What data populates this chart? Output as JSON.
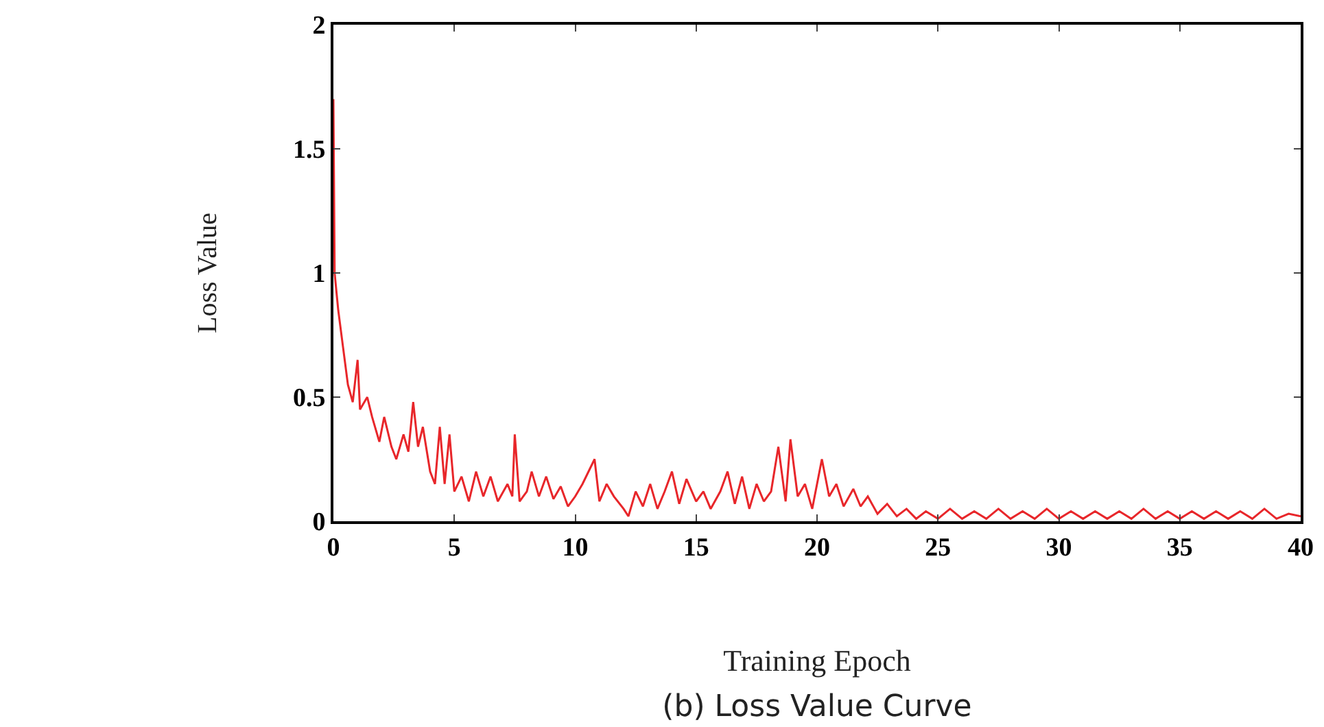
{
  "chart_data": {
    "type": "line",
    "title": "(b) Loss Value Curve",
    "xlabel": "Training Epoch",
    "ylabel": "Loss Value",
    "series": [
      {
        "color": "#e8262a",
        "x": [
          0,
          0.05,
          0.2,
          0.4,
          0.6,
          0.8,
          1.0,
          1.1,
          1.4,
          1.6,
          1.9,
          2.1,
          2.4,
          2.6,
          2.9,
          3.1,
          3.3,
          3.5,
          3.7,
          4.0,
          4.2,
          4.4,
          4.6,
          4.8,
          5.0,
          5.3,
          5.6,
          5.9,
          6.2,
          6.5,
          6.8,
          7.2,
          7.4,
          7.5,
          7.7,
          8.0,
          8.2,
          8.5,
          8.8,
          9.1,
          9.4,
          9.7,
          10.0,
          10.3,
          10.8,
          11.0,
          11.3,
          11.6,
          12.0,
          12.2,
          12.5,
          12.8,
          13.1,
          13.4,
          13.7,
          14.0,
          14.3,
          14.6,
          15.0,
          15.3,
          15.6,
          16.0,
          16.3,
          16.6,
          16.9,
          17.2,
          17.5,
          17.8,
          18.1,
          18.4,
          18.7,
          18.9,
          19.2,
          19.5,
          19.8,
          20.2,
          20.5,
          20.8,
          21.1,
          21.5,
          21.8,
          22.1,
          22.5,
          22.9,
          23.3,
          23.7,
          24.1,
          24.5,
          25,
          25.5,
          26,
          26.5,
          27,
          27.5,
          28,
          28.5,
          29,
          29.5,
          30,
          30.5,
          31,
          31.5,
          32,
          32.5,
          33,
          33.5,
          34,
          34.5,
          35,
          35.5,
          36,
          36.5,
          37,
          37.5,
          38,
          38.5,
          39,
          39.5,
          40
        ],
        "values": [
          1.7,
          1.0,
          0.85,
          0.7,
          0.55,
          0.48,
          0.65,
          0.45,
          0.5,
          0.42,
          0.32,
          0.42,
          0.3,
          0.25,
          0.35,
          0.28,
          0.48,
          0.3,
          0.38,
          0.2,
          0.15,
          0.38,
          0.15,
          0.35,
          0.12,
          0.18,
          0.08,
          0.2,
          0.1,
          0.18,
          0.08,
          0.15,
          0.1,
          0.35,
          0.08,
          0.12,
          0.2,
          0.1,
          0.18,
          0.09,
          0.14,
          0.06,
          0.1,
          0.15,
          0.25,
          0.08,
          0.15,
          0.1,
          0.05,
          0.02,
          0.12,
          0.06,
          0.15,
          0.05,
          0.12,
          0.2,
          0.07,
          0.17,
          0.08,
          0.12,
          0.05,
          0.12,
          0.2,
          0.07,
          0.18,
          0.05,
          0.15,
          0.08,
          0.12,
          0.3,
          0.08,
          0.33,
          0.1,
          0.15,
          0.05,
          0.25,
          0.1,
          0.15,
          0.06,
          0.13,
          0.06,
          0.1,
          0.03,
          0.07,
          0.02,
          0.05,
          0.01,
          0.04,
          0.01,
          0.05,
          0.01,
          0.04,
          0.01,
          0.05,
          0.01,
          0.04,
          0.01,
          0.05,
          0.01,
          0.04,
          0.01,
          0.04,
          0.01,
          0.04,
          0.01,
          0.05,
          0.01,
          0.04,
          0.01,
          0.04,
          0.01,
          0.04,
          0.01,
          0.04,
          0.01,
          0.05,
          0.01,
          0.03,
          0.02
        ]
      }
    ],
    "xlim": [
      0,
      40
    ],
    "xticks": [
      0,
      5,
      10,
      15,
      20,
      25,
      30,
      35,
      40
    ],
    "ylim": [
      0,
      2
    ],
    "yticks": [
      0,
      0.5,
      1,
      1.5,
      2
    ],
    "grid": false,
    "marker": "none",
    "line_style": "solid"
  }
}
